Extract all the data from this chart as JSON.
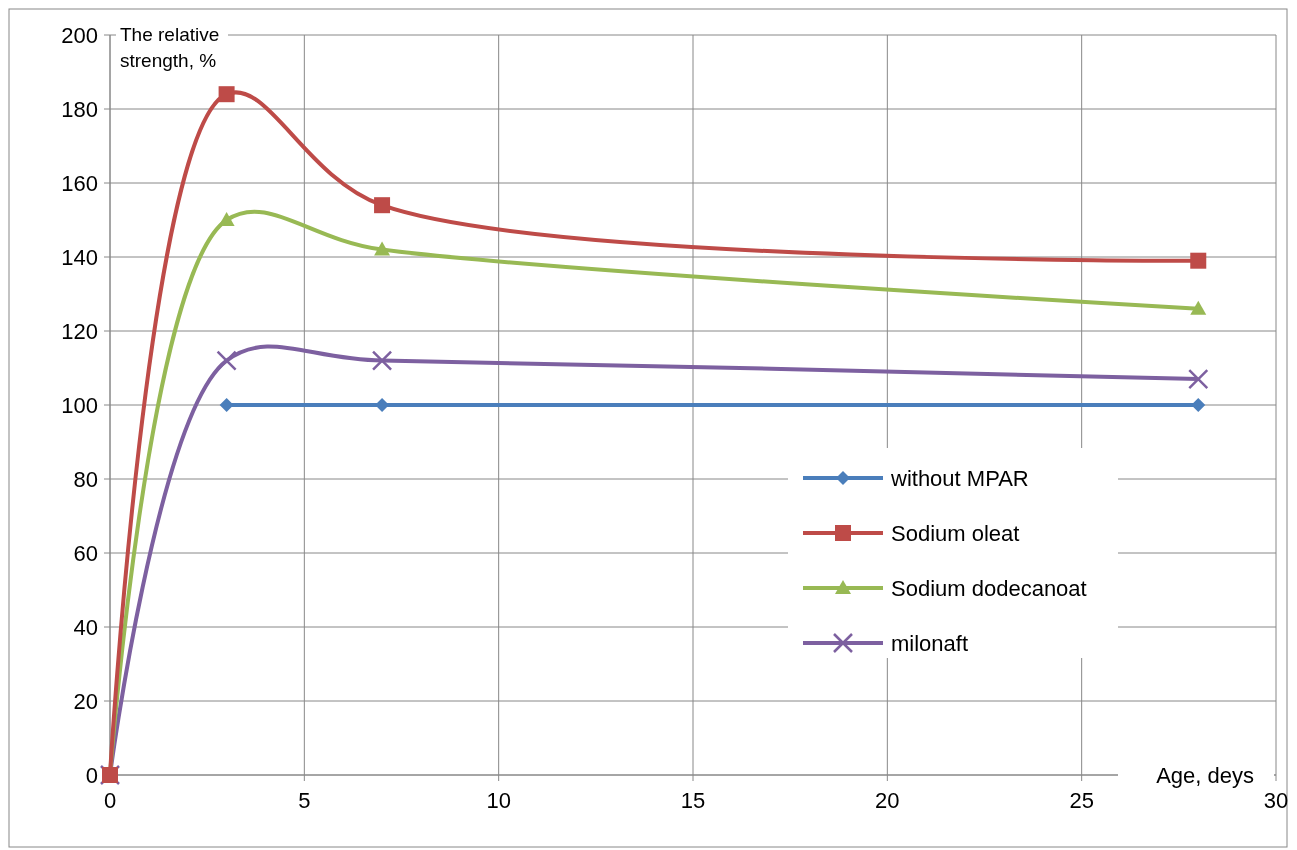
{
  "chart_data": {
    "type": "line",
    "xlabel": "Age, deys",
    "ylabel": "The relative strength, %",
    "x": [
      0,
      3,
      7,
      28
    ],
    "series": [
      {
        "name": "without MPAR",
        "color": "#4a7ebb",
        "marker": "diamond",
        "values": [
          null,
          100,
          100,
          100
        ]
      },
      {
        "name": "Sodium oleat",
        "color": "#be4b48",
        "marker": "square",
        "values": [
          0,
          184,
          154,
          139
        ]
      },
      {
        "name": "Sodium dodecanoat",
        "color": "#98b954",
        "marker": "triangle",
        "values": [
          0,
          150,
          142,
          126
        ]
      },
      {
        "name": "milonaft",
        "color": "#7d60a0",
        "marker": "cross",
        "values": [
          0,
          112,
          112,
          107
        ]
      }
    ],
    "xlim": [
      0,
      30
    ],
    "xticks": [
      0,
      5,
      10,
      15,
      20,
      25,
      30
    ],
    "ylim": [
      0,
      200
    ],
    "yticks": [
      0,
      20,
      40,
      60,
      80,
      100,
      120,
      140,
      160,
      180,
      200
    ],
    "grid": true,
    "legend": "bottom right",
    "line_style": "solid"
  }
}
